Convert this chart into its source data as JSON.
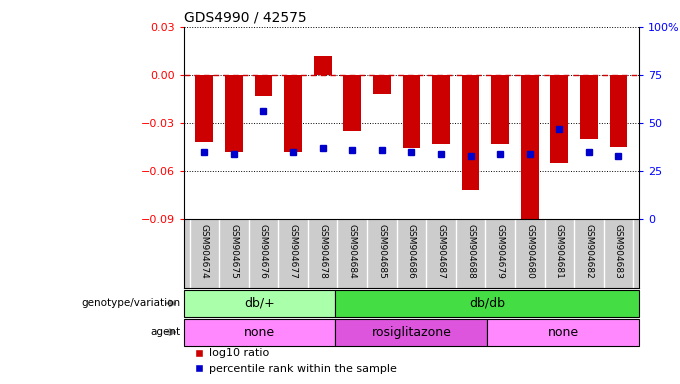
{
  "title": "GDS4990 / 42575",
  "samples": [
    "GSM904674",
    "GSM904675",
    "GSM904676",
    "GSM904677",
    "GSM904678",
    "GSM904684",
    "GSM904685",
    "GSM904686",
    "GSM904687",
    "GSM904688",
    "GSM904679",
    "GSM904680",
    "GSM904681",
    "GSM904682",
    "GSM904683"
  ],
  "log10_ratio": [
    -0.042,
    -0.048,
    -0.013,
    -0.048,
    0.012,
    -0.035,
    -0.012,
    -0.046,
    -0.043,
    -0.072,
    -0.043,
    -0.09,
    -0.055,
    -0.04,
    -0.045
  ],
  "percentile": [
    35,
    34,
    56,
    35,
    37,
    36,
    36,
    35,
    34,
    33,
    34,
    34,
    47,
    35,
    33
  ],
  "ylim_left": [
    -0.09,
    0.03
  ],
  "ylim_right": [
    0,
    100
  ],
  "yticks_left": [
    -0.09,
    -0.06,
    -0.03,
    0,
    0.03
  ],
  "yticks_right": [
    0,
    25,
    50,
    75,
    100
  ],
  "bar_color": "#cc0000",
  "dot_color": "#0000cc",
  "hline_color": "#cc0000",
  "bg_color": "#ffffff",
  "plot_bg": "#ffffff",
  "label_bg": "#cccccc",
  "genotype_groups": [
    {
      "label": "db/+",
      "start": 0,
      "end": 5,
      "color": "#aaffaa"
    },
    {
      "label": "db/db",
      "start": 5,
      "end": 15,
      "color": "#44dd44"
    }
  ],
  "agent_groups": [
    {
      "label": "none",
      "start": 0,
      "end": 5,
      "color": "#ff88ff"
    },
    {
      "label": "rosiglitazone",
      "start": 5,
      "end": 10,
      "color": "#dd55dd"
    },
    {
      "label": "none",
      "start": 10,
      "end": 15,
      "color": "#ff88ff"
    }
  ],
  "legend_red": "log10 ratio",
  "legend_blue": "percentile rank within the sample",
  "bar_width": 0.6,
  "dot_size": 5
}
